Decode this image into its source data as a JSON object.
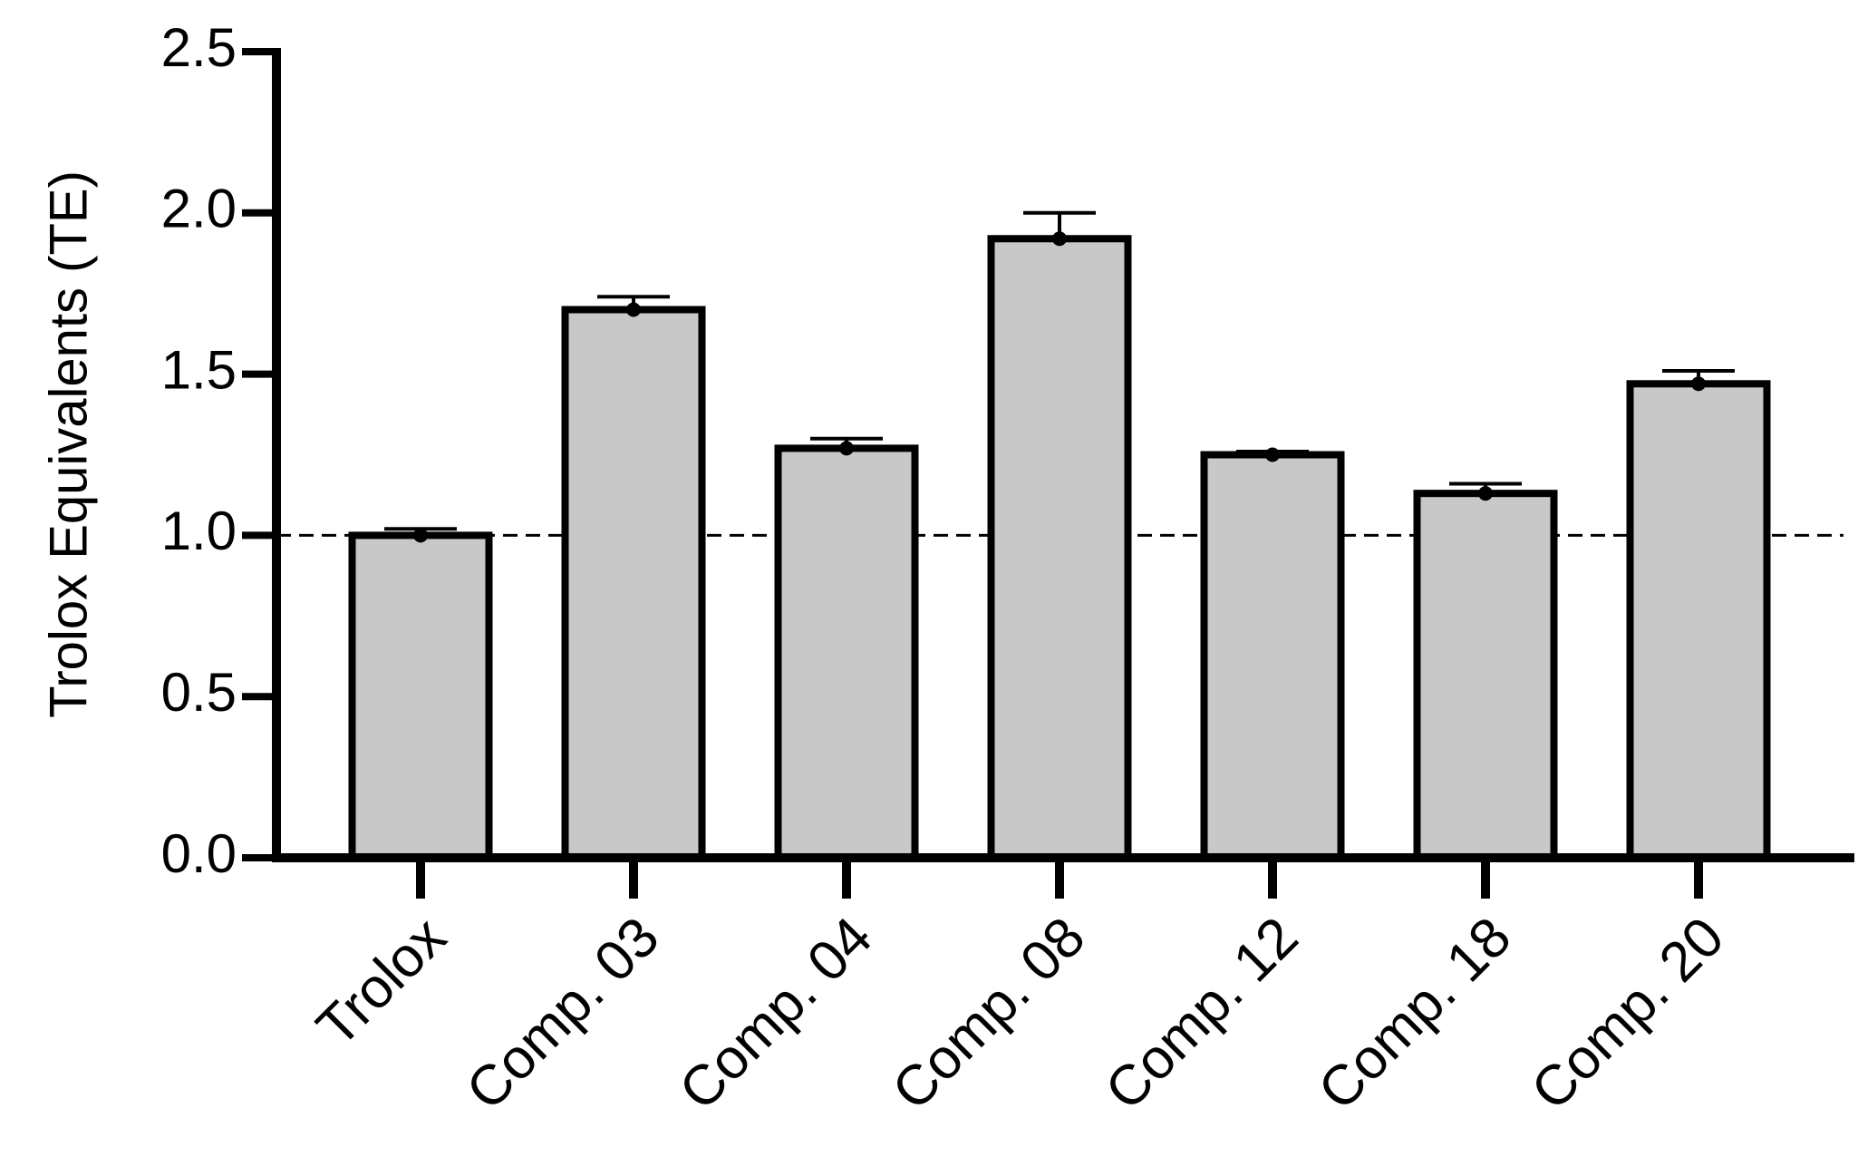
{
  "chart_data": {
    "type": "bar",
    "y_label": "Trolox Equivalents (TE)",
    "categories": [
      "Trolox",
      "Comp. 03",
      "Comp. 04",
      "Comp. 08",
      "Comp. 12",
      "Comp. 18",
      "Comp. 20"
    ],
    "values": [
      1.0,
      1.7,
      1.27,
      1.92,
      1.25,
      1.13,
      1.47
    ],
    "errors": [
      0.02,
      0.04,
      0.03,
      0.08,
      0.01,
      0.03,
      0.04
    ],
    "color": "#c8c8c8",
    "ylim": [
      0,
      2.5
    ],
    "yticks": [
      {
        "value": 0,
        "label": "0.0"
      },
      {
        "value": 0.5,
        "label": "0.5"
      },
      {
        "value": 1,
        "label": "1.0"
      },
      {
        "value": 1.5,
        "label": "1.5"
      },
      {
        "value": 2,
        "label": "2.0"
      },
      {
        "value": 2.5,
        "label": "2.5"
      }
    ],
    "reference_line": 1
  }
}
